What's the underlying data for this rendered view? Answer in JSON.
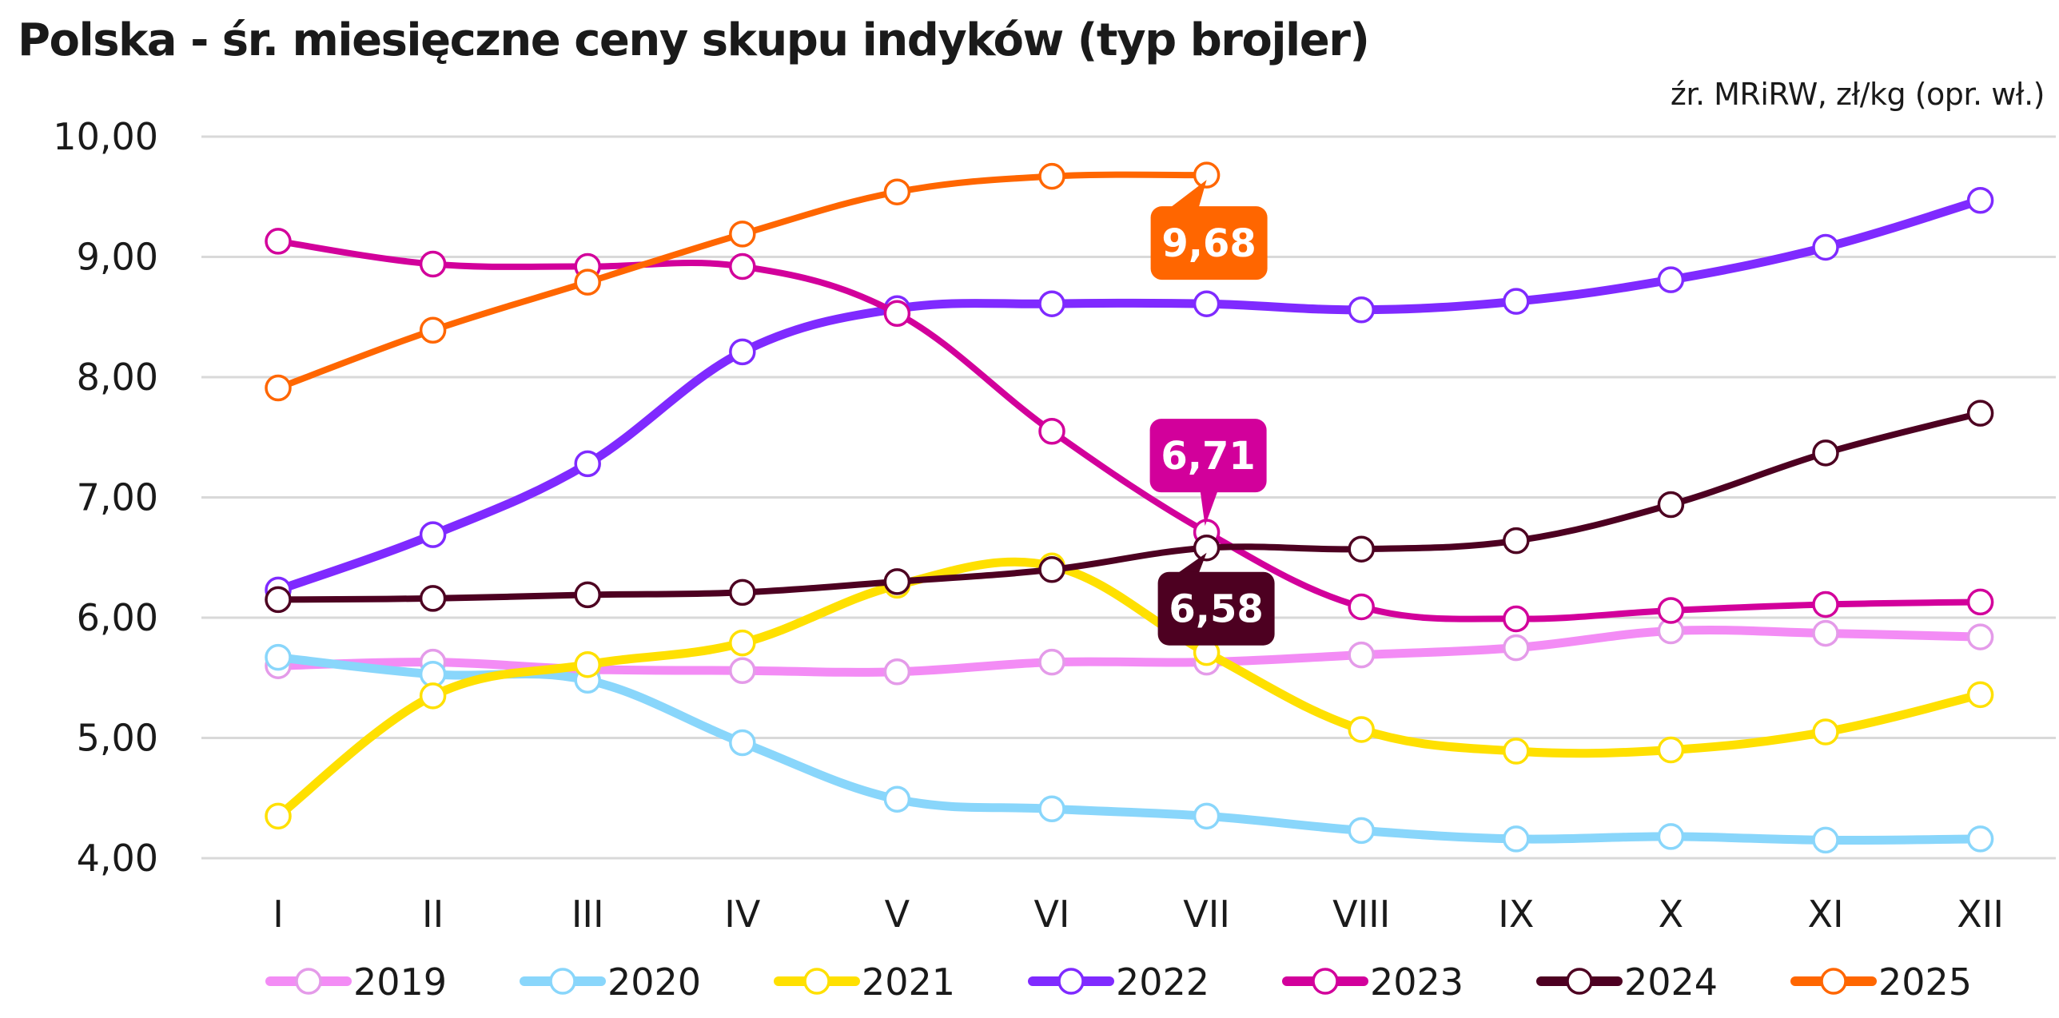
{
  "chart_data": {
    "type": "line",
    "title": "Polska - śr. miesięczne ceny skupu indyków (typ brojler)",
    "source_note": "źr. MRiRW, zł/kg (opr. wł.)",
    "xlabel": "",
    "ylabel": "",
    "categories": [
      "I",
      "II",
      "III",
      "IV",
      "V",
      "VI",
      "VII",
      "VIII",
      "IX",
      "X",
      "XI",
      "XII"
    ],
    "ylim": [
      4,
      10
    ],
    "yticks": [
      4,
      5,
      6,
      7,
      8,
      9,
      10
    ],
    "ytick_labels": [
      "4,00",
      "5,00",
      "6,00",
      "7,00",
      "8,00",
      "9,00",
      "10,00"
    ],
    "grid": "horizontal",
    "legend_position": "bottom",
    "series": [
      {
        "name": "2019",
        "color": "#f38cf5",
        "marker_edge": "#e49be9",
        "width": "thick",
        "values": [
          5.6,
          5.63,
          5.57,
          5.56,
          5.55,
          5.63,
          5.63,
          5.69,
          5.75,
          5.89,
          5.87,
          5.84
        ]
      },
      {
        "name": "2020",
        "color": "#89d6fb",
        "marker_edge": "#89d6fb",
        "width": "thick",
        "values": [
          5.67,
          5.53,
          5.48,
          4.96,
          4.49,
          4.41,
          4.35,
          4.23,
          4.16,
          4.18,
          4.15,
          4.16
        ]
      },
      {
        "name": "2021",
        "color": "#ffe000",
        "marker_edge": "#ffe000",
        "width": "thick",
        "values": [
          4.35,
          5.35,
          5.61,
          5.79,
          6.27,
          6.43,
          5.71,
          5.07,
          4.89,
          4.9,
          5.05,
          5.36
        ]
      },
      {
        "name": "2022",
        "color": "#7f2aff",
        "marker_edge": "#7f2aff",
        "width": "thick",
        "values": [
          6.23,
          6.69,
          7.28,
          8.21,
          8.57,
          8.61,
          8.61,
          8.56,
          8.63,
          8.81,
          9.08,
          9.47
        ]
      },
      {
        "name": "2023",
        "color": "#d2009b",
        "marker_edge": "#d2009b",
        "width": "medium",
        "values": [
          9.13,
          8.94,
          8.92,
          8.92,
          8.53,
          7.55,
          6.71,
          6.09,
          5.99,
          6.06,
          6.11,
          6.13
        ]
      },
      {
        "name": "2024",
        "color": "#4d0021",
        "marker_edge": "#4d0021",
        "width": "medium",
        "values": [
          6.15,
          6.16,
          6.19,
          6.21,
          6.3,
          6.4,
          6.58,
          6.57,
          6.64,
          6.94,
          7.37,
          7.7
        ]
      },
      {
        "name": "2025",
        "color": "#ff6600",
        "marker_edge": "#ff6600",
        "width": "medium",
        "values": [
          7.91,
          8.39,
          8.79,
          9.19,
          9.54,
          9.67,
          9.68
        ]
      }
    ],
    "annotations": [
      {
        "series": "2025",
        "category": "VII",
        "text": "9,68",
        "bg": "#ff6600",
        "placement": "below"
      },
      {
        "series": "2023",
        "category": "VII",
        "text": "6,71",
        "bg": "#d2009b",
        "placement": "above"
      },
      {
        "series": "2024",
        "category": "VII",
        "text": "6,58",
        "bg": "#4d0021",
        "placement": "below"
      }
    ]
  }
}
